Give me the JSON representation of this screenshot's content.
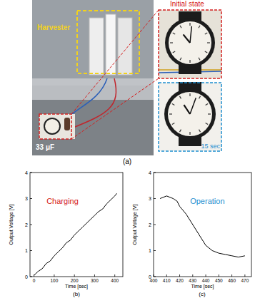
{
  "figure": {
    "panel_labels": [
      "(a)",
      "(b)",
      "(c)"
    ],
    "photo": {
      "harvester_label": "Harvester",
      "capacitor_label": "33 μF",
      "initial_label": "Initial state",
      "after_label": "15 sec"
    }
  },
  "chart_data": [
    {
      "type": "line",
      "xlabel": "Time [sec]",
      "ylabel": "Output Voltage [V]",
      "annotations": [
        {
          "text": "Charging",
          "color": "#d42020"
        }
      ],
      "x": [
        0,
        20,
        40,
        60,
        80,
        100,
        120,
        140,
        160,
        180,
        200,
        220,
        240,
        260,
        280,
        300,
        320,
        340,
        360,
        380,
        400,
        410
      ],
      "values": [
        0.05,
        0.2,
        0.3,
        0.5,
        0.6,
        0.8,
        0.95,
        1.1,
        1.3,
        1.4,
        1.6,
        1.75,
        1.9,
        2.05,
        2.2,
        2.35,
        2.5,
        2.6,
        2.8,
        2.95,
        3.1,
        3.2
      ],
      "color": "#000000",
      "xlim": [
        -20,
        440
      ],
      "xticks": [
        0,
        100,
        200,
        300,
        400
      ],
      "ylim": [
        0,
        4
      ],
      "yticks": [
        0,
        1,
        2,
        3,
        4
      ],
      "grid": false
    },
    {
      "type": "line",
      "xlabel": "Time [sec]",
      "ylabel": "Output Voltage [V]",
      "annotations": [
        {
          "text": "Operation",
          "color": "#1f8fd0"
        }
      ],
      "x": [
        405,
        410,
        415,
        418,
        420,
        425,
        430,
        435,
        440,
        445,
        450,
        455,
        460,
        465,
        470
      ],
      "values": [
        3.0,
        3.1,
        3.0,
        2.9,
        2.7,
        2.4,
        2.0,
        1.6,
        1.2,
        1.0,
        0.9,
        0.85,
        0.8,
        0.75,
        0.8
      ],
      "color": "#000000",
      "xlim": [
        400,
        475
      ],
      "xticks": [
        400,
        410,
        420,
        430,
        440,
        450,
        460,
        470
      ],
      "ylim": [
        0,
        4
      ],
      "yticks": [
        0,
        1,
        2,
        3,
        4
      ],
      "grid": false
    }
  ]
}
